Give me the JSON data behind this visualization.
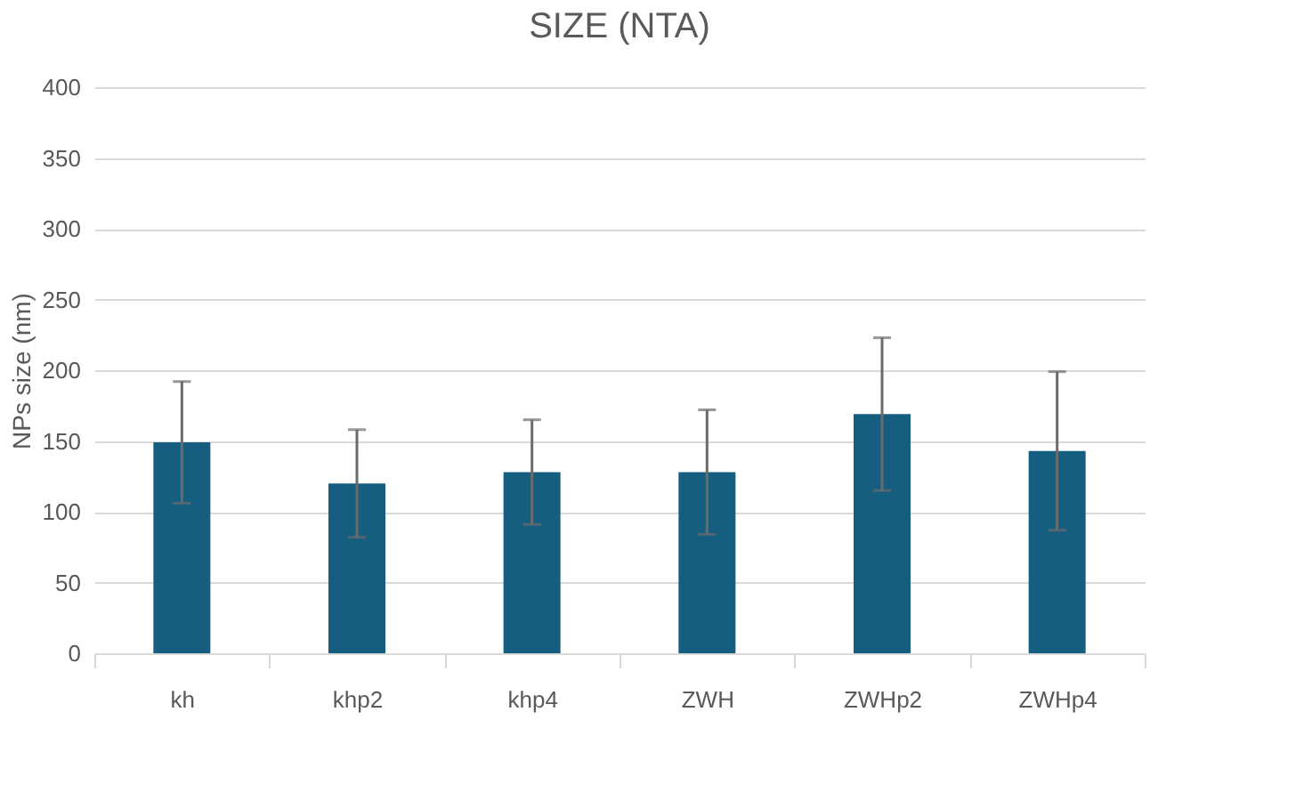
{
  "chart_data": {
    "type": "bar",
    "title": "SIZE (NTA)",
    "ylabel": "NPs size (nm)",
    "categories": [
      "kh",
      "khp2",
      "khp4",
      "ZWH",
      "ZWHp2",
      "ZWHp4"
    ],
    "series": [
      {
        "color": "#165e80",
        "values": [
          149,
          120,
          128,
          128,
          169,
          143
        ],
        "errors": [
          43,
          38,
          37,
          44,
          54,
          56
        ]
      }
    ],
    "ylim": [
      0,
      400
    ],
    "yticks": [
      0,
      50,
      100,
      150,
      200,
      250,
      300,
      350,
      400
    ],
    "grid": "y"
  }
}
